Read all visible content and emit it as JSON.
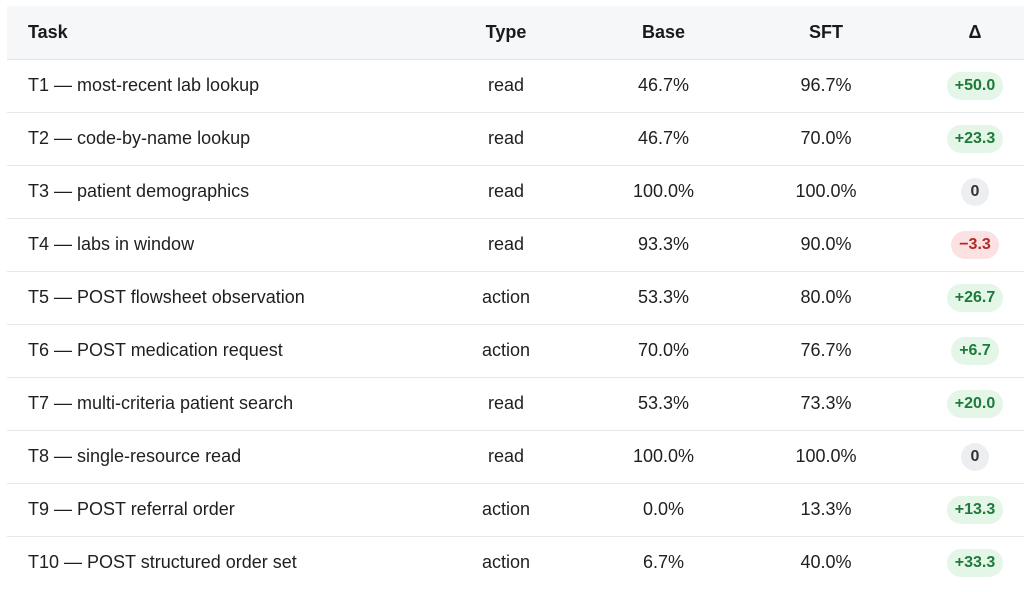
{
  "table": {
    "headers": {
      "task": "Task",
      "type": "Type",
      "base": "Base",
      "sft": "SFT",
      "delta": "Δ"
    },
    "rows": [
      {
        "task": "T1 — most-recent lab lookup",
        "type": "read",
        "base": "46.7%",
        "sft": "96.7%",
        "delta": "+50.0",
        "delta_kind": "pos"
      },
      {
        "task": "T2 — code-by-name lookup",
        "type": "read",
        "base": "46.7%",
        "sft": "70.0%",
        "delta": "+23.3",
        "delta_kind": "pos"
      },
      {
        "task": "T3 — patient demographics",
        "type": "read",
        "base": "100.0%",
        "sft": "100.0%",
        "delta": "0",
        "delta_kind": "zero"
      },
      {
        "task": "T4 — labs in window",
        "type": "read",
        "base": "93.3%",
        "sft": "90.0%",
        "delta": "−3.3",
        "delta_kind": "neg"
      },
      {
        "task": "T5 — POST flowsheet observation",
        "type": "action",
        "base": "53.3%",
        "sft": "80.0%",
        "delta": "+26.7",
        "delta_kind": "pos"
      },
      {
        "task": "T6 — POST medication request",
        "type": "action",
        "base": "70.0%",
        "sft": "76.7%",
        "delta": "+6.7",
        "delta_kind": "pos"
      },
      {
        "task": "T7 — multi-criteria patient search",
        "type": "read",
        "base": "53.3%",
        "sft": "73.3%",
        "delta": "+20.0",
        "delta_kind": "pos"
      },
      {
        "task": "T8 — single-resource read",
        "type": "read",
        "base": "100.0%",
        "sft": "100.0%",
        "delta": "0",
        "delta_kind": "zero"
      },
      {
        "task": "T9 — POST referral order",
        "type": "action",
        "base": "0.0%",
        "sft": "13.3%",
        "delta": "+13.3",
        "delta_kind": "pos"
      },
      {
        "task": "T10 — POST structured order set",
        "type": "action",
        "base": "6.7%",
        "sft": "40.0%",
        "delta": "+33.3",
        "delta_kind": "pos"
      }
    ]
  },
  "colors": {
    "positive_badge_bg": "#e4f6e8",
    "positive_badge_text": "#1f7a3a",
    "negative_badge_bg": "#fbe1e1",
    "negative_badge_text": "#b02a2a",
    "zero_badge_bg": "#eceef1",
    "header_bg": "#f6f7f8"
  }
}
